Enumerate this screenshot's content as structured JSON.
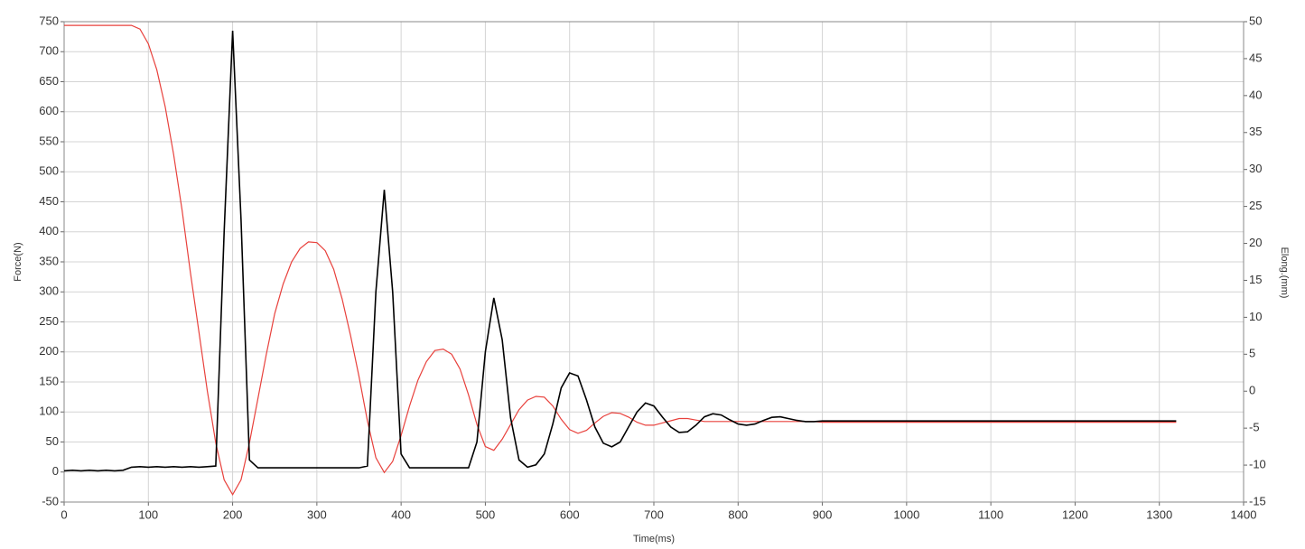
{
  "chart_data": {
    "type": "line",
    "xlabel": "Time(ms)",
    "ylabel": "Force(N)",
    "y2label": "Elong.(mm)",
    "x": [
      0,
      10,
      20,
      30,
      40,
      50,
      60,
      70,
      80,
      90,
      100,
      110,
      120,
      130,
      140,
      150,
      160,
      170,
      180,
      190,
      200,
      210,
      220,
      230,
      240,
      250,
      260,
      270,
      280,
      290,
      300,
      310,
      320,
      330,
      340,
      350,
      360,
      370,
      380,
      390,
      400,
      410,
      420,
      430,
      440,
      450,
      460,
      470,
      480,
      490,
      500,
      510,
      520,
      530,
      540,
      550,
      560,
      570,
      580,
      590,
      600,
      610,
      620,
      630,
      640,
      650,
      660,
      670,
      680,
      690,
      700,
      710,
      720,
      730,
      740,
      750,
      760,
      770,
      780,
      790,
      800,
      810,
      820,
      830,
      840,
      850,
      860,
      870,
      880,
      890,
      900,
      950,
      1000,
      1050,
      1100,
      1150,
      1200,
      1250,
      1300,
      1320
    ],
    "series": [
      {
        "color": "#000000",
        "axis": "y",
        "values": [
          2,
          3,
          2,
          3,
          2,
          3,
          2,
          3,
          8,
          9,
          8,
          9,
          8,
          9,
          8,
          9,
          8,
          9,
          10,
          400,
          735,
          420,
          20,
          7,
          7,
          7,
          7,
          7,
          7,
          7,
          7,
          7,
          7,
          7,
          7,
          7,
          10,
          300,
          470,
          300,
          30,
          7,
          7,
          7,
          7,
          7,
          7,
          7,
          7,
          50,
          200,
          290,
          220,
          90,
          20,
          8,
          12,
          30,
          80,
          140,
          165,
          160,
          120,
          75,
          48,
          42,
          50,
          75,
          100,
          115,
          110,
          92,
          75,
          66,
          67,
          78,
          92,
          97,
          95,
          87,
          80,
          78,
          80,
          86,
          91,
          92,
          89,
          86,
          84,
          84,
          85,
          85,
          85,
          85,
          85,
          85,
          85,
          85,
          85,
          85
        ]
      },
      {
        "color": "#e8413c",
        "axis": "y2",
        "values": [
          49.5,
          49.5,
          49.5,
          49.5,
          49.5,
          49.5,
          49.5,
          49.5,
          49.5,
          49,
          47,
          43.5,
          38.5,
          32,
          24.5,
          16,
          8,
          0,
          -7,
          -12,
          -14,
          -12,
          -7,
          -1,
          5,
          10.5,
          14.5,
          17.5,
          19.3,
          20.2,
          20.1,
          19,
          16.5,
          12.5,
          7.5,
          2,
          -4,
          -9,
          -11,
          -9.5,
          -6,
          -2,
          1.5,
          4,
          5.5,
          5.7,
          5,
          3,
          -0.5,
          -4.5,
          -7.5,
          -8,
          -6.5,
          -4.5,
          -2.5,
          -1.2,
          -0.7,
          -0.8,
          -2,
          -3.8,
          -5.2,
          -5.7,
          -5.3,
          -4.3,
          -3.4,
          -2.9,
          -3,
          -3.5,
          -4.2,
          -4.6,
          -4.6,
          -4.3,
          -4,
          -3.7,
          -3.7,
          -3.9,
          -4.1,
          -4.1,
          -4.1,
          -4.1,
          -4.1,
          -4.1,
          -4.1,
          -4.1,
          -4.1,
          -4.1,
          -4.1,
          -4.1,
          -4.1,
          -4.1,
          -4.2,
          -4.2,
          -4.2,
          -4.2,
          -4.2,
          -4.2,
          -4.2,
          -4.2,
          -4.2,
          -4.2
        ]
      }
    ],
    "xlim": [
      0,
      1400
    ],
    "xticks": [
      0,
      100,
      200,
      300,
      400,
      500,
      600,
      700,
      800,
      900,
      1000,
      1100,
      1200,
      1300,
      1400
    ],
    "ylim": [
      -50,
      750
    ],
    "yticks": [
      -50,
      0,
      50,
      100,
      150,
      200,
      250,
      300,
      350,
      400,
      450,
      500,
      550,
      600,
      650,
      700,
      750
    ],
    "y2lim": [
      -15,
      50
    ],
    "y2ticks": [
      -15,
      -10,
      -5,
      0,
      5,
      10,
      15,
      20,
      25,
      30,
      35,
      40,
      45,
      50
    ],
    "grid": true
  }
}
